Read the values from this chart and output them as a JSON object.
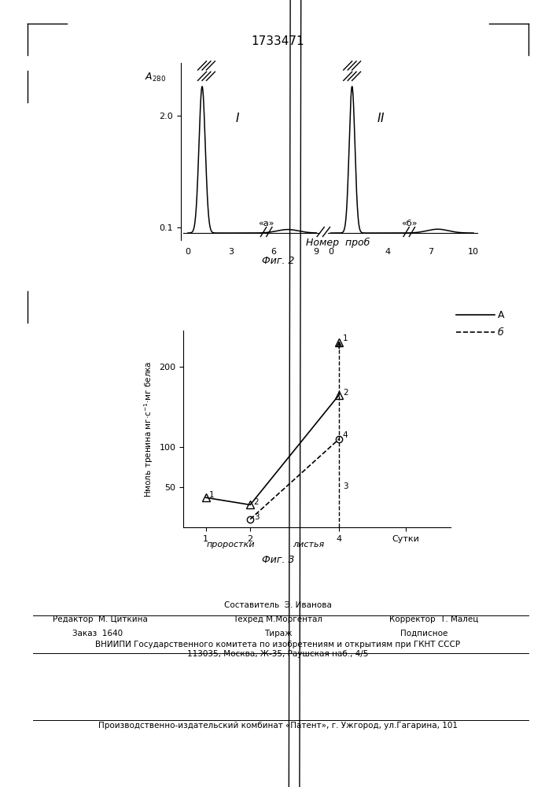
{
  "title": "1733471",
  "fig2_title": "Фиг. 2",
  "fig3_title": "Фиг. 3",
  "fig2_xlabel": "Номер  проб",
  "fig2_label_I": "I",
  "fig2_label_II": "II",
  "fig2_label_a": "«а»",
  "fig2_label_b": "«б»",
  "fig3_legend_A": "A",
  "fig3_legend_b": "б",
  "fig3_xlabel_1": "проростки",
  "fig3_xlabel_2": "листья",
  "fig3_xlabel_sutki": "Сутки",
  "footer_editor": "Редактор  М. Циткина",
  "footer_composer": "Составитель  Э. Иванова",
  "footer_techred": "Техред М.Моргентал",
  "footer_corrector": "Корректор  Т. Малец",
  "footer_order": "Заказ  1640",
  "footer_print": "Тираж",
  "footer_subscription": "Подписное",
  "footer_vniippi": "ВНИИПИ Государственного комитета по изобретениям и открытиям при ГКНТ СССР",
  "footer_address": "113035, Москва, Ж-35, Раушская наб., 4/5",
  "footer_production": "Производственно-издательский комбинат «Патент», г. Ужгород, ул.Гагарина, 101",
  "bg_color": "#ffffff"
}
